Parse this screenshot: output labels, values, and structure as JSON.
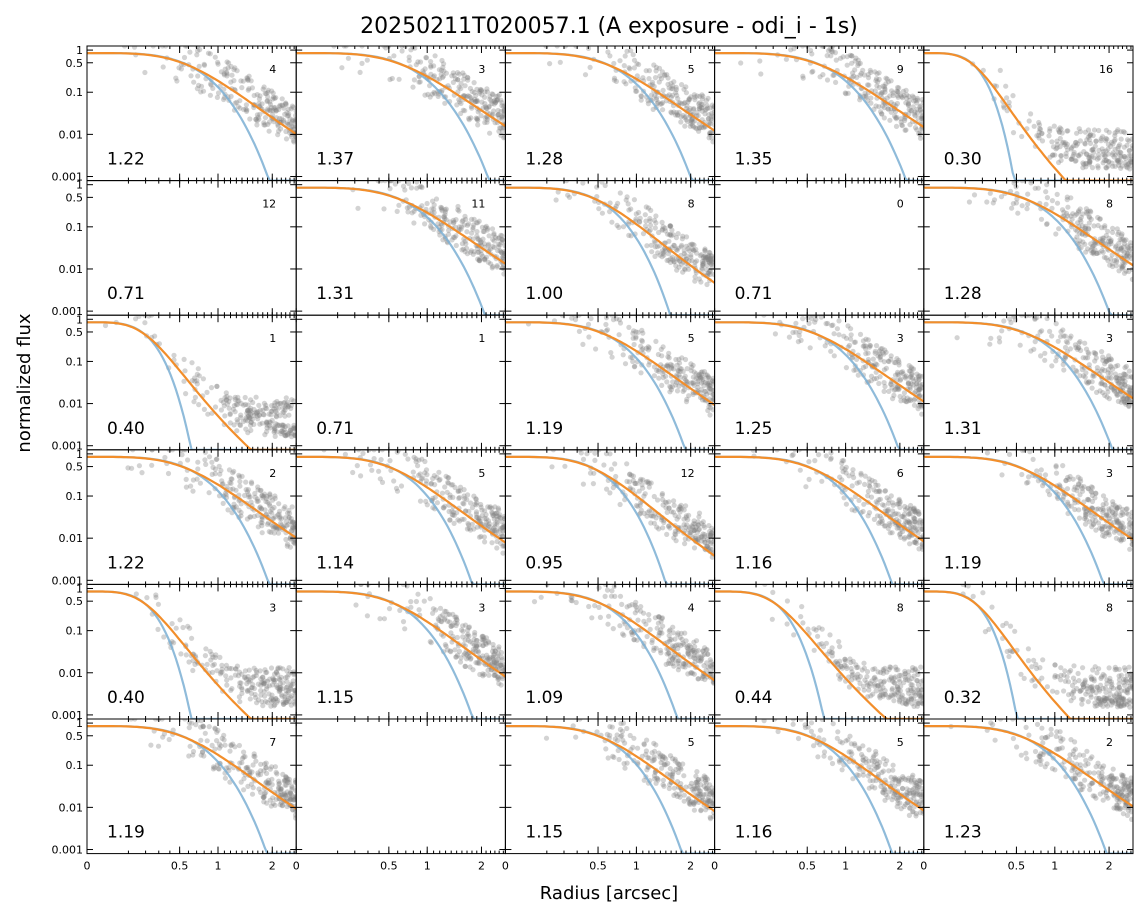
{
  "chart_data": {
    "type": "scatter",
    "title": "20250211T020057.1 (A exposure - odi_i - 1s)",
    "xlabel": "Radius [arcsec]",
    "ylabel": "normalized flux",
    "xscale": "sqrt",
    "yscale": "log",
    "xlim": [
      0,
      2.55
    ],
    "ylim": [
      0.0008,
      1.25
    ],
    "xticks": [
      0,
      0.5,
      1,
      2
    ],
    "xtick_labels": [
      "0",
      "0.5",
      "1",
      "2"
    ],
    "yticks": [
      1,
      0.5,
      0.1,
      0.01,
      0.001
    ],
    "ytick_labels": [
      "1",
      "0.5",
      "0.1",
      "0.01",
      "0.001"
    ],
    "grid": false,
    "layout": {
      "rows": 6,
      "cols": 5
    },
    "colors": {
      "points": "#808080",
      "model": "#7bafd4",
      "fit": "#f28e2b"
    },
    "panels": [
      {
        "fwhm": "1.22",
        "count": "4",
        "hasData": true
      },
      {
        "fwhm": "1.37",
        "count": "3",
        "hasData": true
      },
      {
        "fwhm": "1.28",
        "count": "5",
        "hasData": true
      },
      {
        "fwhm": "1.35",
        "count": "9",
        "hasData": true
      },
      {
        "fwhm": "0.30",
        "count": "16",
        "hasData": true
      },
      {
        "fwhm": "0.71",
        "count": "12",
        "hasData": false
      },
      {
        "fwhm": "1.31",
        "count": "11",
        "hasData": true
      },
      {
        "fwhm": "1.00",
        "count": "8",
        "hasData": true
      },
      {
        "fwhm": "0.71",
        "count": "0",
        "hasData": false
      },
      {
        "fwhm": "1.28",
        "count": "8",
        "hasData": true
      },
      {
        "fwhm": "0.40",
        "count": "1",
        "hasData": true
      },
      {
        "fwhm": "0.71",
        "count": "1",
        "hasData": false
      },
      {
        "fwhm": "1.19",
        "count": "5",
        "hasData": true
      },
      {
        "fwhm": "1.25",
        "count": "3",
        "hasData": true
      },
      {
        "fwhm": "1.31",
        "count": "3",
        "hasData": true
      },
      {
        "fwhm": "1.22",
        "count": "2",
        "hasData": true
      },
      {
        "fwhm": "1.14",
        "count": "5",
        "hasData": true
      },
      {
        "fwhm": "0.95",
        "count": "12",
        "hasData": true
      },
      {
        "fwhm": "1.16",
        "count": "6",
        "hasData": true
      },
      {
        "fwhm": "1.19",
        "count": "3",
        "hasData": true
      },
      {
        "fwhm": "0.40",
        "count": "3",
        "hasData": true
      },
      {
        "fwhm": "1.15",
        "count": "3",
        "hasData": true
      },
      {
        "fwhm": "1.09",
        "count": "4",
        "hasData": true
      },
      {
        "fwhm": "0.44",
        "count": "8",
        "hasData": true
      },
      {
        "fwhm": "0.32",
        "count": "8",
        "hasData": true
      },
      {
        "fwhm": "1.19",
        "count": "7",
        "hasData": true
      },
      {
        "fwhm": "",
        "count": "",
        "hasData": false
      },
      {
        "fwhm": "1.15",
        "count": "5",
        "hasData": true
      },
      {
        "fwhm": "1.16",
        "count": "5",
        "hasData": true
      },
      {
        "fwhm": "1.23",
        "count": "2",
        "hasData": true
      }
    ]
  }
}
